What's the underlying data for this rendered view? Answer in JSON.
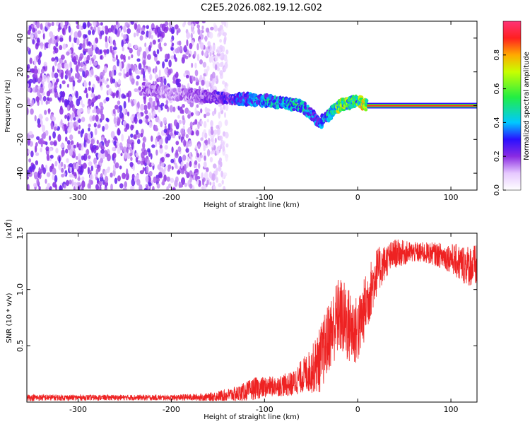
{
  "title": "C2E5.2026.082.19.12.G02",
  "colors": {
    "snr_line": "#ee2222",
    "axis": "#000000",
    "background": "#ffffff"
  },
  "chart_data": [
    {
      "type": "heatmap",
      "title": "C2E5.2026.082.19.12.G02",
      "xlabel": "Height of straight line (km)",
      "ylabel": "Frequency (Hz)",
      "xlim": [
        -355,
        128
      ],
      "ylim": [
        -50,
        50
      ],
      "x_ticks": [
        -300,
        -200,
        -100,
        0,
        100
      ],
      "y_ticks": [
        -40,
        -20,
        0,
        20,
        40
      ],
      "colorbar": {
        "label": "Normalized spectral amplitude",
        "range": [
          0.0,
          1.0
        ],
        "ticks": [
          "0.0",
          "0.2",
          "0.4",
          "0.6",
          "0.8"
        ],
        "tick_values": [
          0.0,
          0.2,
          0.4,
          0.6,
          0.8
        ]
      },
      "description_series": {
        "noise_region_x": [
          -355,
          -140
        ],
        "signal_trace_center": [
          {
            "x": -230,
            "freq": 10,
            "amp": 0.2
          },
          {
            "x": -200,
            "freq": 7,
            "amp": 0.15
          },
          {
            "x": -150,
            "freq": 5,
            "amp": 0.25
          },
          {
            "x": -100,
            "freq": 3,
            "amp": 0.45
          },
          {
            "x": -60,
            "freq": 0,
            "amp": 0.5
          },
          {
            "x": -40,
            "freq": -10,
            "amp": 0.35
          },
          {
            "x": -20,
            "freq": 0,
            "amp": 0.7
          },
          {
            "x": 0,
            "freq": 3,
            "amp": 0.6
          },
          {
            "x": 10,
            "freq": 0,
            "amp": 0.9
          },
          {
            "x": 128,
            "freq": 0,
            "amp": 0.9
          }
        ]
      }
    },
    {
      "type": "line",
      "xlabel": "Height of straight line (km)",
      "ylabel": "SNR (10 * v/v)",
      "y_multiplier": "(x10",
      "y_multiplier_exp": "4",
      "xlim": [
        -355,
        128
      ],
      "ylim": [
        0,
        15000
      ],
      "x_ticks": [
        -300,
        -200,
        -100,
        0,
        100
      ],
      "y_ticks": [
        5000,
        10000,
        15000
      ],
      "y_tick_labels": [
        "0.5",
        "1.0",
        "1.5"
      ],
      "series": [
        {
          "name": "SNR",
          "envelope": {
            "x": [
              -355,
              -300,
              -200,
              -160,
              -130,
              -110,
              -90,
              -70,
              -60,
              -50,
              -40,
              -30,
              -20,
              -10,
              0,
              10,
              20,
              30,
              40,
              60,
              80,
              100,
              110,
              128
            ],
            "mean": [
              400,
              400,
              400,
              450,
              700,
              1200,
              1400,
              1600,
              2300,
              2800,
              3800,
              6000,
              7800,
              6800,
              6200,
              9000,
              11500,
              12500,
              13200,
              13300,
              13200,
              12800,
              12300,
              12000
            ],
            "jitter": [
              300,
              250,
              250,
              350,
              700,
              1000,
              900,
              1100,
              1500,
              2000,
              3000,
              3200,
              3500,
              3500,
              3000,
              2800,
              2200,
              1500,
              1300,
              900,
              1000,
              1300,
              1700,
              2000
            ]
          }
        }
      ]
    }
  ]
}
